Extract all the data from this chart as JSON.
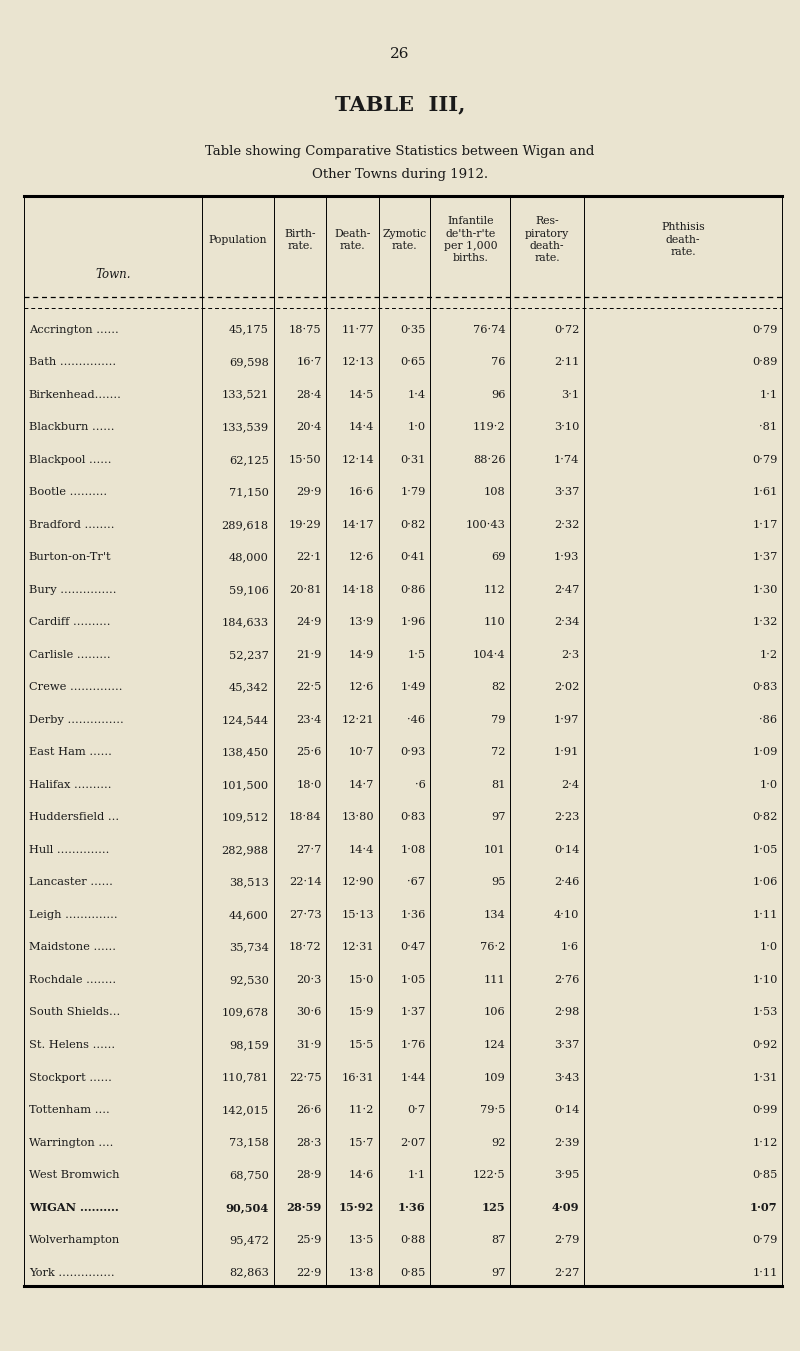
{
  "page_number": "26",
  "title": "TABLE  III,",
  "subtitle1": "Table showing Comparative Statistics between Wigan and",
  "subtitle2": "Other Towns during 1912.",
  "bg_color": "#EAE4D0",
  "text_color": "#1a1a1a",
  "header_texts": [
    "Town.",
    "Population",
    "Birth-\nrate.",
    "Death-\nrate.",
    "Zymotic\nrate.",
    "Infantile\nde'th-r'te\nper 1,000\nbirths.",
    "Res-\npiratory\ndeath-\nrate.",
    "Phthisis\ndeath-\nrate."
  ],
  "rows": [
    [
      "Accrington ......",
      "45,175",
      "18·75",
      "11·77",
      "0·35",
      "76·74",
      "0·72",
      "0·79"
    ],
    [
      "Bath ...............",
      "69,598",
      "16·7",
      "12·13",
      "0·65",
      "76",
      "2·11",
      "0·89"
    ],
    [
      "Birkenhead.......",
      "133,521",
      "28·4",
      "14·5",
      "1·4",
      "96",
      "3·1",
      "1·1"
    ],
    [
      "Blackburn ......",
      "133,539",
      "20·4",
      "14·4",
      "1·0",
      "119·2",
      "3·10",
      "·81"
    ],
    [
      "Blackpool ......",
      "62,125",
      "15·50",
      "12·14",
      "0·31",
      "88·26",
      "1·74",
      "0·79"
    ],
    [
      "Bootle ..........",
      "71,150",
      "29·9",
      "16·6",
      "1·79",
      "108",
      "3·37",
      "1·61"
    ],
    [
      "Bradford ........",
      "289,618",
      "19·29",
      "14·17",
      "0·82",
      "100·43",
      "2·32",
      "1·17"
    ],
    [
      "Burton-on-Tr't",
      "48,000",
      "22·1",
      "12·6",
      "0·41",
      "69",
      "1·93",
      "1·37"
    ],
    [
      "Bury ...............",
      "59,106",
      "20·81",
      "14·18",
      "0·86",
      "112",
      "2·47",
      "1·30"
    ],
    [
      "Cardiff ..........",
      "184,633",
      "24·9",
      "13·9",
      "1·96",
      "110",
      "2·34",
      "1·32"
    ],
    [
      "Carlisle .........",
      "52,237",
      "21·9",
      "14·9",
      "1·5",
      "104·4",
      "2·3",
      "1·2"
    ],
    [
      "Crewe ..............",
      "45,342",
      "22·5",
      "12·6",
      "1·49",
      "82",
      "2·02",
      "0·83"
    ],
    [
      "Derby ...............",
      "124,544",
      "23·4",
      "12·21",
      "·46",
      "79",
      "1·97",
      "·86"
    ],
    [
      "East Ham ......",
      "138,450",
      "25·6",
      "10·7",
      "0·93",
      "72",
      "1·91",
      "1·09"
    ],
    [
      "Halifax ..........",
      "101,500",
      "18·0",
      "14·7",
      "·6",
      "81",
      "2·4",
      "1·0"
    ],
    [
      "Huddersfield ...",
      "109,512",
      "18·84",
      "13·80",
      "0·83",
      "97",
      "2·23",
      "0·82"
    ],
    [
      "Hull ..............",
      "282,988",
      "27·7",
      "14·4",
      "1·08",
      "101",
      "0·14",
      "1·05"
    ],
    [
      "Lancaster ......",
      "38,513",
      "22·14",
      "12·90",
      "·67",
      "95",
      "2·46",
      "1·06"
    ],
    [
      "Leigh ..............",
      "44,600",
      "27·73",
      "15·13",
      "1·36",
      "134",
      "4·10",
      "1·11"
    ],
    [
      "Maidstone ......",
      "35,734",
      "18·72",
      "12·31",
      "0·47",
      "76·2",
      "1·6",
      "1·0"
    ],
    [
      "Rochdale ........",
      "92,530",
      "20·3",
      "15·0",
      "1·05",
      "111",
      "2·76",
      "1·10"
    ],
    [
      "South Shields...",
      "109,678",
      "30·6",
      "15·9",
      "1·37",
      "106",
      "2·98",
      "1·53"
    ],
    [
      "St. Helens ......",
      "98,159",
      "31·9",
      "15·5",
      "1·76",
      "124",
      "3·37",
      "0·92"
    ],
    [
      "Stockport ......",
      "110,781",
      "22·75",
      "16·31",
      "1·44",
      "109",
      "3·43",
      "1·31"
    ],
    [
      "Tottenham ....",
      "142,015",
      "26·6",
      "11·2",
      "0·7",
      "79·5",
      "0·14",
      "0·99"
    ],
    [
      "Warrington ....",
      "73,158",
      "28·3",
      "15·7",
      "2·07",
      "92",
      "2·39",
      "1·12"
    ],
    [
      "West Bromwich",
      "68,750",
      "28·9",
      "14·6",
      "1·1",
      "122·5",
      "3·95",
      "0·85"
    ],
    [
      "WIGAN ..........",
      "90,504",
      "28·59",
      "15·92",
      "1·36",
      "125",
      "4·09",
      "1·07"
    ],
    [
      "Wolverhampton",
      "95,472",
      "25·9",
      "13·5",
      "0·88",
      "87",
      "2·79",
      "0·79"
    ],
    [
      "York ...............",
      "82,863",
      "22·9",
      "13·8",
      "0·85",
      "97",
      "2·27",
      "1·11"
    ]
  ]
}
